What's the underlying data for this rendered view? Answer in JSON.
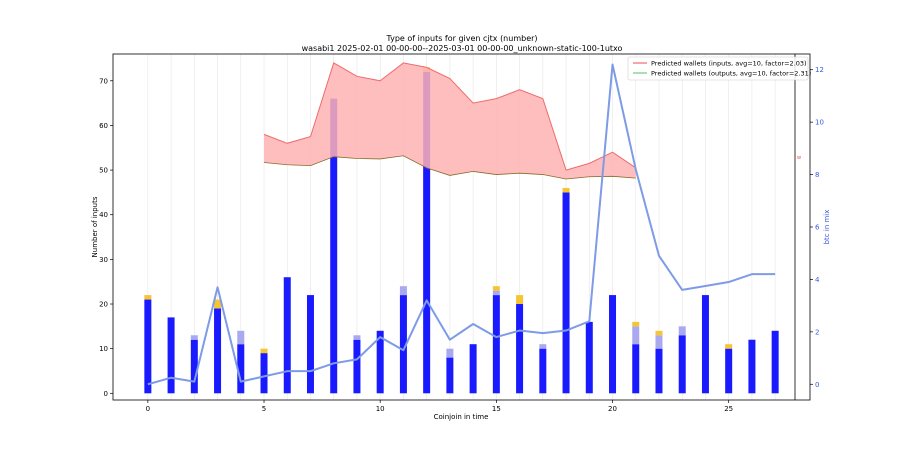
{
  "chart_data": {
    "type": "bar",
    "title": "Type of inputs for given cjtx (number)",
    "subtitle": "wasabi1 2025-02-01 00-00-00--2025-03-01 00-00-00_unknown-static-100-1utxo",
    "xlabel": "Coinjoin in time",
    "ylabel": "Number of inputs",
    "y2label": "btc in mix",
    "xlim": [
      -1.5,
      28.5
    ],
    "ylim": [
      -1.5,
      76
    ],
    "y2lim": [
      -0.6,
      12.6
    ],
    "x_ticks": [
      0,
      5,
      10,
      15,
      20,
      25
    ],
    "y_ticks": [
      0,
      10,
      20,
      30,
      40,
      50,
      60,
      70
    ],
    "y2_ticks": [
      0,
      2,
      4,
      6,
      8,
      10,
      12
    ],
    "grid": "vertical",
    "x": [
      0,
      1,
      2,
      3,
      4,
      5,
      6,
      7,
      8,
      9,
      10,
      11,
      12,
      13,
      14,
      15,
      16,
      17,
      18,
      19,
      20,
      21,
      22,
      23,
      24,
      25,
      26,
      27
    ],
    "stacks": [
      {
        "name": "",
        "color": "#1a1aff",
        "values": [
          21,
          17,
          12,
          19,
          11,
          9,
          26,
          22,
          66,
          12,
          14,
          22,
          72,
          8,
          11,
          22,
          20,
          10,
          45,
          16,
          22,
          11,
          10,
          13,
          22,
          10,
          12,
          14
        ]
      },
      {
        "name": "",
        "color": "#a9a9f0",
        "values": [
          0,
          0,
          1,
          0,
          3,
          0,
          0,
          0,
          0,
          1,
          0,
          2,
          0,
          2,
          0,
          1,
          0,
          1,
          0,
          0,
          0,
          4,
          3,
          2,
          0,
          0,
          0,
          0
        ]
      },
      {
        "name": "",
        "color": "#f7c531",
        "values": [
          1,
          0,
          0,
          2,
          0,
          1,
          0,
          0,
          0,
          0,
          0,
          0,
          1,
          0,
          0,
          1,
          2,
          0,
          1,
          0,
          0,
          1,
          1,
          0,
          0,
          1,
          0,
          0
        ]
      }
    ],
    "band": {
      "x": [
        5,
        6,
        7,
        8,
        9,
        10,
        11,
        12,
        13,
        14,
        15,
        16,
        17,
        18,
        19,
        20,
        21
      ],
      "upper": [
        58,
        56,
        57.5,
        74,
        71,
        70,
        74,
        73,
        70.5,
        65,
        66,
        68,
        66,
        50,
        51.5,
        54,
        50.5
      ],
      "lower": [
        51.7,
        51.2,
        51,
        53,
        52.6,
        52.5,
        53.2,
        50.5,
        48.8,
        49.7,
        49,
        49.3,
        49,
        48,
        48.5,
        48.6,
        48.2
      ],
      "fill": "#ffb3b3"
    },
    "btc_line": {
      "color": "#7d9be6",
      "x": [
        0,
        1,
        2,
        3,
        4,
        5,
        6,
        7,
        8,
        9,
        10,
        11,
        12,
        13,
        14,
        15,
        16,
        17,
        18,
        19,
        20,
        21,
        22,
        23,
        24,
        25,
        26,
        27
      ],
      "values": [
        0,
        0.25,
        0.1,
        3.7,
        0.1,
        0.3,
        0.5,
        0.5,
        0.8,
        0.95,
        1.8,
        1.3,
        3.2,
        1.7,
        2.3,
        1.8,
        2.05,
        1.95,
        2.05,
        2.4,
        12.2,
        8.2,
        4.9,
        3.6,
        3.75,
        3.9,
        4.2,
        4.2
      ]
    },
    "legend": {
      "position": "top-right",
      "entries": [
        {
          "label": "Predicted wallets (inputs, avg=10, factor=2.03)",
          "color": "#ef6b6b"
        },
        {
          "label": "Predicted wallets (outputs, avg=10, factor=2.31)",
          "color": "#6fcf6f"
        }
      ]
    },
    "mid_axis_label": "w"
  }
}
